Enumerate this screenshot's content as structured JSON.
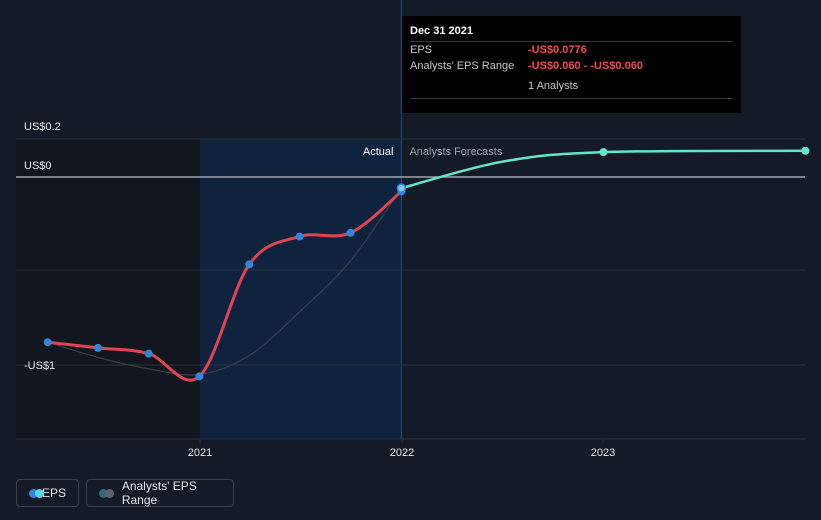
{
  "chart_data": {
    "type": "line",
    "x_axis": {
      "range": [
        "2020-03-31",
        "2023-12-31"
      ],
      "tick_labels": [
        "2021",
        "2022",
        "2023"
      ]
    },
    "y_axis": {
      "range": [
        -1.0,
        0.2
      ],
      "tick_labels": [
        "US$0.2",
        "US$0",
        "-US$1"
      ],
      "tick_values": [
        0.2,
        0,
        -1.0
      ],
      "gridline_values": [
        0.2,
        0,
        -0.5,
        -1.0
      ]
    },
    "highlight_region": {
      "from": "2021-01-01",
      "to": "2021-12-31"
    },
    "region_labels": {
      "actual": "Actual",
      "forecast": "Analysts Forecasts"
    },
    "series": [
      {
        "name": "EPS",
        "color": "#e04451",
        "points": [
          {
            "x": "2020-03-31",
            "y": -0.88
          },
          {
            "x": "2020-06-30",
            "y": -0.91
          },
          {
            "x": "2020-09-30",
            "y": -0.94
          },
          {
            "x": "2020-12-31",
            "y": -1.06
          },
          {
            "x": "2021-03-31",
            "y": -0.47
          },
          {
            "x": "2021-06-30",
            "y": -0.32
          },
          {
            "x": "2021-09-30",
            "y": -0.3
          },
          {
            "x": "2021-12-31",
            "y": -0.0776
          }
        ]
      },
      {
        "name": "EPS Forecast",
        "color": "#61e6c8",
        "points": [
          {
            "x": "2021-12-31",
            "y": -0.06
          },
          {
            "x": "2022-06-30",
            "y": 0.08
          },
          {
            "x": "2022-12-31",
            "y": 0.131
          },
          {
            "x": "2023-12-31",
            "y": 0.138
          }
        ]
      },
      {
        "name": "Analysts' EPS Range",
        "color": "#3a3f4a",
        "points": [
          {
            "x": "2020-03-31",
            "y": -0.88
          },
          {
            "x": "2020-06-30",
            "y": -0.96
          },
          {
            "x": "2020-09-30",
            "y": -1.02
          },
          {
            "x": "2020-12-31",
            "y": -1.05
          },
          {
            "x": "2021-03-31",
            "y": -0.95
          },
          {
            "x": "2021-06-30",
            "y": -0.72
          },
          {
            "x": "2021-09-30",
            "y": -0.45
          },
          {
            "x": "2021-12-31",
            "y": -0.06
          }
        ]
      }
    ],
    "legend": [
      {
        "label": "EPS",
        "colors": [
          "#2f86dd",
          "#5ad1f3"
        ]
      },
      {
        "label": "Analysts' EPS Range",
        "colors": [
          "#2e6b7a",
          "#5a6270"
        ]
      }
    ],
    "legend_position": "bottom-left"
  },
  "tooltip": {
    "date": "Dec 31 2021",
    "rows": [
      {
        "label": "EPS",
        "value": "-US$0.0776"
      },
      {
        "label": "Analysts' EPS Range",
        "value": "-US$0.060 - -US$0.060"
      }
    ],
    "analysts": "1 Analysts"
  },
  "colors": {
    "background": "#151b26",
    "past_shade": "#12161e",
    "actual_region": "#0e2444",
    "gridline": "#2a3140",
    "zero_line": "#a0a6b0",
    "marker": "#2f86dd",
    "forecast_marker": "#61e6c8",
    "axis_text": "#e6e6e6",
    "region_text_actual": "#ffffff",
    "region_text_forecast": "#9aa0aa"
  }
}
